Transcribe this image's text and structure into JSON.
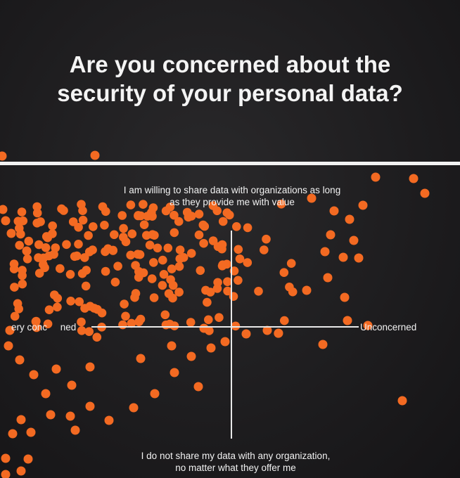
{
  "poster": {
    "title_line1": "Are you concerned about the",
    "title_line2": "security of your personal data?",
    "axis_top_line1": "I am willing to share data with organizations as long",
    "axis_top_line2": "as they provide me with value",
    "axis_bottom_line1": "I do not share my data with any organization,",
    "axis_bottom_line2": "no matter what they offer me",
    "axis_left": "ery conc     ned",
    "axis_right": "Unconcerned"
  },
  "colors": {
    "background": "#1c1b1c",
    "dot": "#f36a22",
    "text": "#f2f2f2"
  }
}
